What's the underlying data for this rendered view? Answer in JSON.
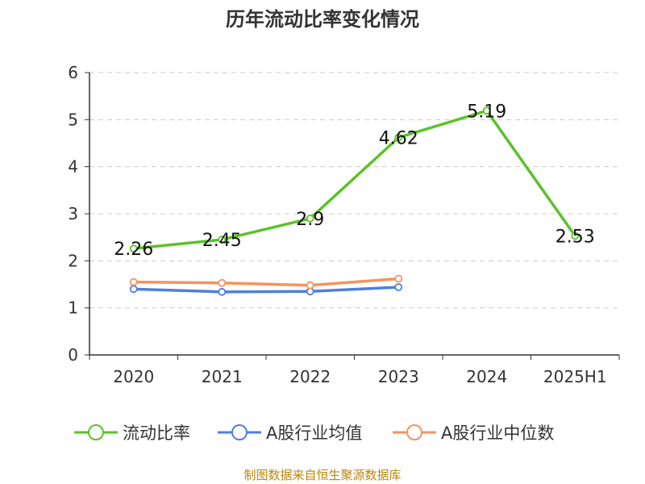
{
  "chart_data": {
    "type": "line",
    "title": "历年流动比率变化情况",
    "categories": [
      "2020",
      "2021",
      "2022",
      "2023",
      "2024",
      "2025H1"
    ],
    "ylim": [
      0,
      6
    ],
    "yticks": [
      "0",
      "1",
      "2",
      "3",
      "4",
      "5",
      "6"
    ],
    "grid": true,
    "legend_position": "bottom",
    "series": [
      {
        "name": "流动比率",
        "color": "#5bc227",
        "values": [
          2.26,
          2.45,
          2.9,
          4.62,
          5.19,
          2.53
        ],
        "labels": [
          "2.26",
          "2.45",
          "2.9",
          "4.62",
          "5.19",
          "2.53"
        ]
      },
      {
        "name": "A股行业均值",
        "color": "#4f7fde",
        "values": [
          1.4,
          1.34,
          1.35,
          1.44,
          null,
          null
        ]
      },
      {
        "name": "A股行业中位数",
        "color": "#f4935f",
        "values": [
          1.55,
          1.53,
          1.48,
          1.62,
          null,
          null
        ]
      }
    ]
  },
  "source_note": "制图数据来自恒生聚源数据库"
}
